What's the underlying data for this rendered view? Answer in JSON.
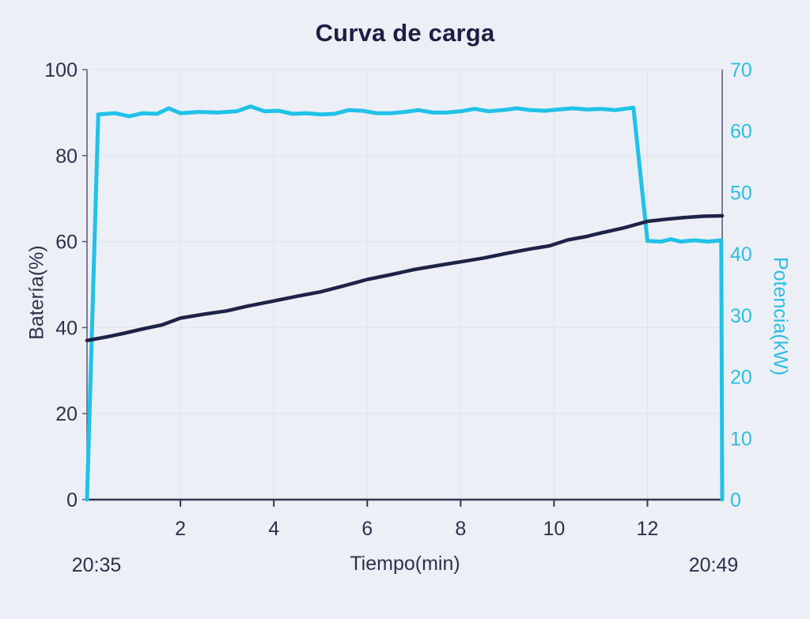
{
  "title": "Curva de carga",
  "colors": {
    "background": "#edeff6",
    "title_text": "#1b2044",
    "axis_text": "#2c314b",
    "battery_line": "#1d2347",
    "power_line": "#20c2e8",
    "power_axis_text": "#2cbfe0",
    "gridline": "#e2e4ee",
    "side_axis_line": "#545871",
    "bottom_axis_line": "#31364f"
  },
  "chart_data": {
    "type": "line",
    "title": "Curva de carga",
    "xlabel": "Tiempo(min)",
    "ylabel_left": "Batería(%)",
    "ylabel_right": "Potencia(kW)",
    "x_start_time": "20:35",
    "x_end_time": "20:49",
    "xlim": [
      0,
      13.6
    ],
    "x_ticks": [
      2,
      4,
      6,
      8,
      10,
      12
    ],
    "ylim_left": [
      0,
      100
    ],
    "y_ticks_left": [
      0,
      20,
      40,
      60,
      80,
      100
    ],
    "ylim_right": [
      0,
      70
    ],
    "y_ticks_right": [
      0,
      10,
      20,
      30,
      40,
      50,
      60,
      70
    ],
    "grid": true,
    "legend": "none",
    "series": [
      {
        "name": "Potencia(kW)",
        "axis": "right",
        "color": "#20c2e8",
        "points": [
          [
            0,
            0
          ],
          [
            0.24,
            62.7
          ],
          [
            0.6,
            62.9
          ],
          [
            0.9,
            62.4
          ],
          [
            1.2,
            62.9
          ],
          [
            1.5,
            62.8
          ],
          [
            1.75,
            63.7
          ],
          [
            2.0,
            62.9
          ],
          [
            2.4,
            63.1
          ],
          [
            2.8,
            63.0
          ],
          [
            3.2,
            63.2
          ],
          [
            3.5,
            64.0
          ],
          [
            3.8,
            63.2
          ],
          [
            4.1,
            63.3
          ],
          [
            4.4,
            62.8
          ],
          [
            4.7,
            62.9
          ],
          [
            5.0,
            62.7
          ],
          [
            5.3,
            62.8
          ],
          [
            5.6,
            63.4
          ],
          [
            5.9,
            63.3
          ],
          [
            6.2,
            62.9
          ],
          [
            6.5,
            62.9
          ],
          [
            6.8,
            63.1
          ],
          [
            7.1,
            63.4
          ],
          [
            7.4,
            63.0
          ],
          [
            7.7,
            63.0
          ],
          [
            8.0,
            63.2
          ],
          [
            8.3,
            63.6
          ],
          [
            8.6,
            63.2
          ],
          [
            8.9,
            63.4
          ],
          [
            9.2,
            63.7
          ],
          [
            9.5,
            63.4
          ],
          [
            9.8,
            63.3
          ],
          [
            10.1,
            63.5
          ],
          [
            10.4,
            63.7
          ],
          [
            10.7,
            63.5
          ],
          [
            11.0,
            63.6
          ],
          [
            11.3,
            63.4
          ],
          [
            11.7,
            63.8
          ],
          [
            12.0,
            42.1
          ],
          [
            12.3,
            42.0
          ],
          [
            12.5,
            42.4
          ],
          [
            12.7,
            42.0
          ],
          [
            13.0,
            42.2
          ],
          [
            13.3,
            42.0
          ],
          [
            13.58,
            42.2
          ],
          [
            13.6,
            0
          ]
        ]
      },
      {
        "name": "Batería(%)",
        "axis": "left",
        "color": "#1d2347",
        "points": [
          [
            0,
            37.0
          ],
          [
            0.4,
            37.8
          ],
          [
            0.8,
            38.7
          ],
          [
            1.2,
            39.7
          ],
          [
            1.6,
            40.6
          ],
          [
            2.0,
            42.2
          ],
          [
            2.5,
            43.1
          ],
          [
            3.0,
            43.9
          ],
          [
            3.4,
            44.9
          ],
          [
            4.0,
            46.2
          ],
          [
            4.5,
            47.3
          ],
          [
            5.0,
            48.3
          ],
          [
            5.5,
            49.7
          ],
          [
            6.0,
            51.2
          ],
          [
            6.5,
            52.3
          ],
          [
            7.0,
            53.5
          ],
          [
            7.6,
            54.6
          ],
          [
            8.0,
            55.3
          ],
          [
            8.5,
            56.2
          ],
          [
            9.0,
            57.3
          ],
          [
            9.5,
            58.3
          ],
          [
            9.9,
            59.0
          ],
          [
            10.3,
            60.4
          ],
          [
            10.7,
            61.2
          ],
          [
            11.0,
            62.0
          ],
          [
            11.5,
            63.2
          ],
          [
            12.0,
            64.7
          ],
          [
            12.4,
            65.2
          ],
          [
            12.8,
            65.6
          ],
          [
            13.2,
            65.9
          ],
          [
            13.6,
            66.0
          ]
        ]
      }
    ]
  }
}
